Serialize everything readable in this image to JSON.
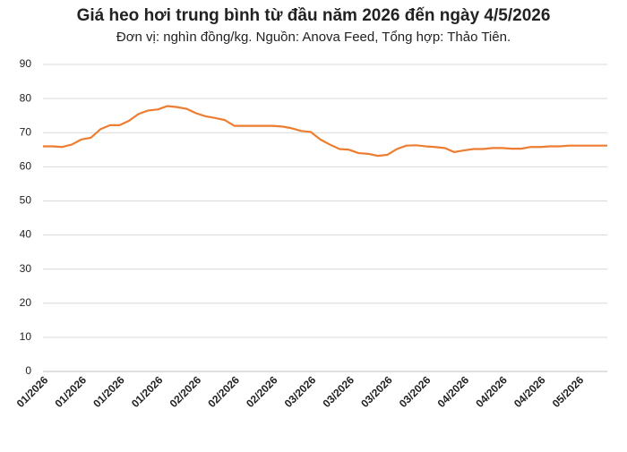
{
  "chart_data": {
    "type": "line",
    "title": "Giá heo hơi trung bình từ đầu năm 2026 đến ngày 4/5/2026",
    "subtitle": "Đơn vị: nghìn đồng/kg. Nguồn: Anova Feed, Tổng hợp: Thảo Tiên.",
    "categories": [
      "01/2026",
      null,
      null,
      null,
      "01/2026",
      null,
      null,
      null,
      "01/2026",
      null,
      null,
      null,
      "01/2026",
      null,
      null,
      null,
      "02/2026",
      null,
      null,
      null,
      "02/2026",
      null,
      null,
      null,
      "02/2026",
      null,
      null,
      null,
      "03/2026",
      null,
      null,
      null,
      "03/2026",
      null,
      null,
      null,
      "03/2026",
      null,
      null,
      null,
      "03/2026",
      null,
      null,
      null,
      "04/2026",
      null,
      null,
      null,
      "04/2026",
      null,
      null,
      null,
      "04/2026",
      null,
      null,
      null,
      "05/2026",
      null,
      null,
      null
    ],
    "values": [
      66,
      66,
      65.8,
      66.5,
      68,
      68.5,
      71,
      72.2,
      72.2,
      73.5,
      75.5,
      76.5,
      76.8,
      77.8,
      77.5,
      77,
      75.7,
      74.8,
      74.3,
      73.7,
      72,
      72,
      72,
      72,
      72,
      71.8,
      71.3,
      70.5,
      70.2,
      68,
      66.5,
      65.2,
      65,
      64,
      63.8,
      63.2,
      63.5,
      65.2,
      66.2,
      66.3,
      66,
      65.8,
      65.5,
      64.3,
      64.8,
      65.2,
      65.2,
      65.5,
      65.5,
      65.3,
      65.3,
      65.8,
      65.8,
      66,
      66,
      66.2,
      66.2,
      66.2,
      66.2,
      66.2
    ],
    "color": "#ed7d31",
    "ylim": [
      0,
      90
    ],
    "yticks": [
      0,
      10,
      20,
      30,
      40,
      50,
      60,
      70,
      80,
      90
    ],
    "grid": true
  }
}
